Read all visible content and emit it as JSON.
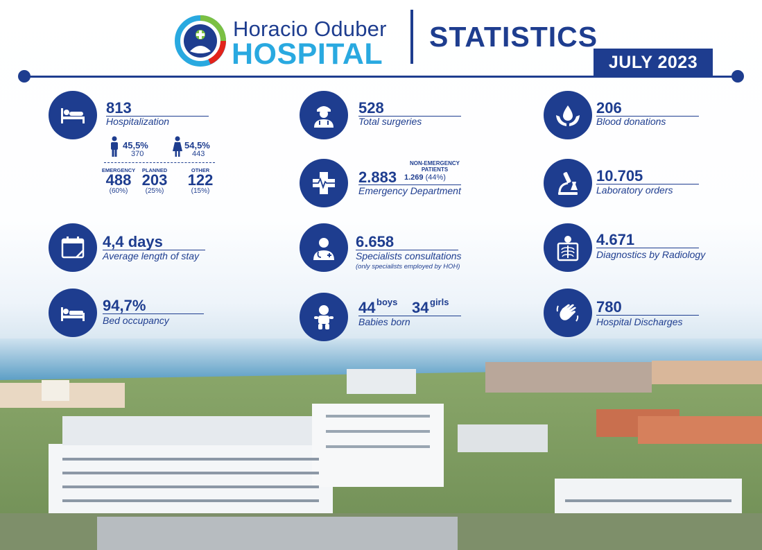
{
  "header": {
    "brand_line1": "Horacio Oduber",
    "brand_line2": "HOSPITAL",
    "title": "STATISTICS",
    "period": "JULY 2023"
  },
  "hospitalization": {
    "value": "813",
    "label": "Hospitalization",
    "male": {
      "pct": "45,5%",
      "count": "370"
    },
    "female": {
      "pct": "54,5%",
      "count": "443"
    },
    "emergency": {
      "label": "EMERGENCY",
      "value": "488",
      "pct": "(60%)"
    },
    "planned": {
      "label": "PLANNED",
      "value": "203",
      "pct": "(25%)"
    },
    "other": {
      "label": "OTHER",
      "value": "122",
      "pct": "(15%)"
    }
  },
  "surgeries": {
    "value": "528",
    "label": "Total surgeries"
  },
  "blood": {
    "value": "206",
    "label": "Blood donations"
  },
  "emergency_dept": {
    "value": "2.883",
    "label": "Emergency Department",
    "non_emergency_label": "NON-EMERGENCY PATIENTS",
    "non_emergency_value": "1.269",
    "non_emergency_pct": "(44%)"
  },
  "laboratory": {
    "value": "10.705",
    "label": "Laboratory orders"
  },
  "stay": {
    "value": "4,4 days",
    "label": "Average length of stay"
  },
  "specialists": {
    "value": "6.658",
    "label": "Specialists consultations",
    "note": "(only specialists employed by HOH)"
  },
  "radiology": {
    "value": "4.671",
    "label": "Diagnostics by Radiology"
  },
  "occupancy": {
    "value": "94,7%",
    "label": "Bed occupancy"
  },
  "babies": {
    "boys_value": "44",
    "boys_label": "boys",
    "girls_value": "34",
    "girls_label": "girls",
    "label": "Babies born"
  },
  "discharges": {
    "value": "780",
    "label": "Hospital Discharges"
  },
  "colors": {
    "navy": "#1e3d8f",
    "light_blue": "#29a9e0",
    "green": "#7bc043",
    "red": "#e2231a"
  }
}
